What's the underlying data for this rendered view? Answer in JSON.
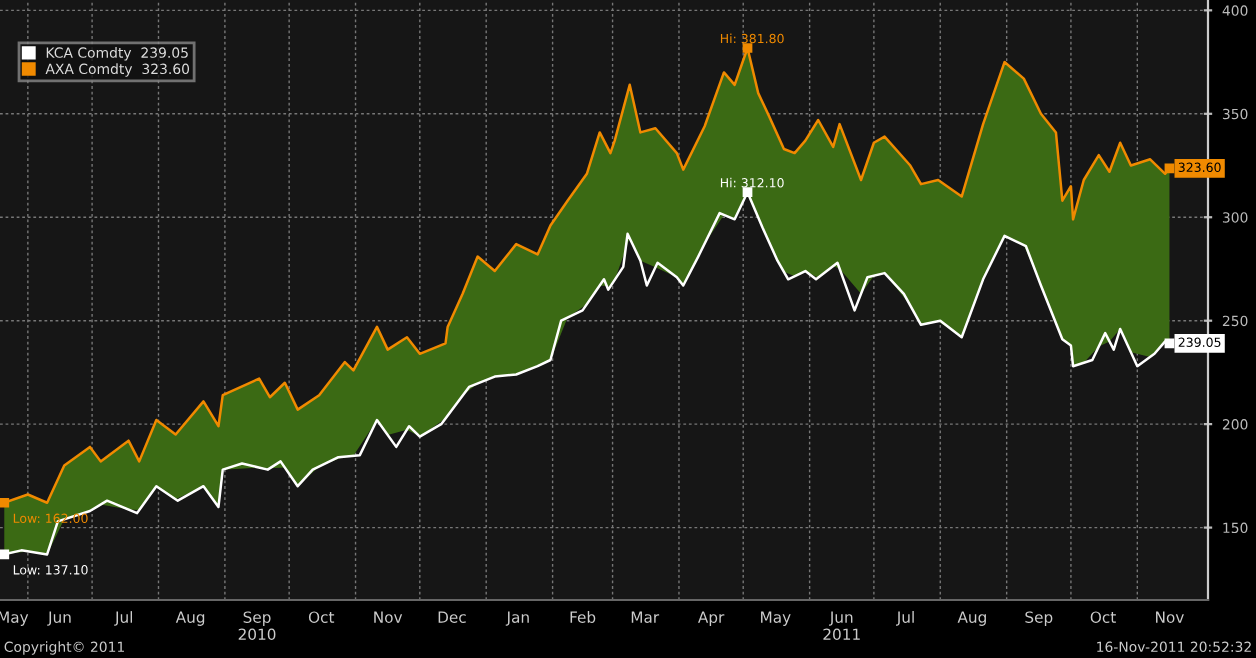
{
  "chart_data": {
    "type": "line",
    "xlim": [
      "2010-05-19",
      "2011-12-04"
    ],
    "ylim": [
      115,
      405
    ],
    "yticks": [
      150,
      200,
      250,
      300,
      350,
      400
    ],
    "xticks": [
      {
        "value": "2010-05-25",
        "label": "May"
      },
      {
        "value": "2010-06-01",
        "label": null
      },
      {
        "value": "2010-06-16",
        "label": "Jun"
      },
      {
        "value": "2010-07-01",
        "label": null
      },
      {
        "value": "2010-07-16",
        "label": "Jul"
      },
      {
        "value": "2010-08-01",
        "label": null
      },
      {
        "value": "2010-08-16",
        "label": "Aug"
      },
      {
        "value": "2010-09-01",
        "label": null
      },
      {
        "value": "2010-09-16",
        "label": "Sep\n2010"
      },
      {
        "value": "2010-10-01",
        "label": null
      },
      {
        "value": "2010-10-16",
        "label": "Oct"
      },
      {
        "value": "2010-11-01",
        "label": null
      },
      {
        "value": "2010-11-16",
        "label": "Nov"
      },
      {
        "value": "2010-12-01",
        "label": null
      },
      {
        "value": "2010-12-16",
        "label": "Dec"
      },
      {
        "value": "2011-01-01",
        "label": null
      },
      {
        "value": "2011-01-16",
        "label": "Jan"
      },
      {
        "value": "2011-02-01",
        "label": null
      },
      {
        "value": "2011-02-15",
        "label": "Feb"
      },
      {
        "value": "2011-03-01",
        "label": null
      },
      {
        "value": "2011-03-16",
        "label": "Mar"
      },
      {
        "value": "2011-04-01",
        "label": null
      },
      {
        "value": "2011-04-16",
        "label": "Apr"
      },
      {
        "value": "2011-05-01",
        "label": null
      },
      {
        "value": "2011-05-16",
        "label": "May"
      },
      {
        "value": "2011-06-01",
        "label": null
      },
      {
        "value": "2011-06-16",
        "label": "Jun\n2011"
      },
      {
        "value": "2011-07-01",
        "label": null
      },
      {
        "value": "2011-07-16",
        "label": "Jul"
      },
      {
        "value": "2011-08-01",
        "label": null
      },
      {
        "value": "2011-08-16",
        "label": "Aug"
      },
      {
        "value": "2011-09-01",
        "label": null
      },
      {
        "value": "2011-09-16",
        "label": "Sep"
      },
      {
        "value": "2011-10-01",
        "label": null
      },
      {
        "value": "2011-10-16",
        "label": "Oct"
      },
      {
        "value": "2011-11-01",
        "label": null
      },
      {
        "value": "2011-11-16",
        "label": "Nov"
      }
    ],
    "grid": true,
    "legend": "top left",
    "colors": [
      "#3b6a14"
    ],
    "series": [
      {
        "name": "KCA Comdty  239.05",
        "color": "#ffffff",
        "x": [
          "2010-05-21",
          "2010-05-29",
          "2010-06-10",
          "2010-06-15",
          "2010-06-30",
          "2010-07-08",
          "2010-07-22",
          "2010-07-31",
          "2010-08-10",
          "2010-08-22",
          "2010-08-29",
          "2010-08-31",
          "2010-09-09",
          "2010-09-21",
          "2010-09-27",
          "2010-10-05",
          "2010-10-12",
          "2010-10-24",
          "2010-11-03",
          "2010-11-11",
          "2010-11-20",
          "2010-11-26",
          "2010-12-01",
          "2010-12-11",
          "2010-12-24",
          "2011-01-05",
          "2011-01-15",
          "2011-01-25",
          "2011-01-31",
          "2011-02-05",
          "2011-02-15",
          "2011-02-25",
          "2011-02-27",
          "2011-03-06",
          "2011-03-08",
          "2011-03-14",
          "2011-03-17",
          "2011-03-22",
          "2011-03-31",
          "2011-04-03",
          "2011-04-10",
          "2011-04-20",
          "2011-04-27",
          "2011-05-03",
          "2011-05-10",
          "2011-05-17",
          "2011-05-22",
          "2011-05-30",
          "2011-06-04",
          "2011-06-14",
          "2011-06-22",
          "2011-06-28",
          "2011-07-06",
          "2011-07-15",
          "2011-07-23",
          "2011-08-01",
          "2011-08-11",
          "2011-08-21",
          "2011-08-31",
          "2011-09-10",
          "2011-09-17",
          "2011-09-27",
          "2011-10-01",
          "2011-10-02",
          "2011-10-11",
          "2011-10-17",
          "2011-10-21",
          "2011-10-24",
          "2011-11-01",
          "2011-11-09",
          "2011-11-14",
          "2011-11-16"
        ],
        "values": [
          137.1,
          139,
          137,
          153,
          158,
          163,
          157,
          170,
          163,
          170,
          160,
          178,
          181,
          178,
          182,
          170,
          178,
          184,
          185,
          202,
          189,
          199,
          194,
          200,
          218,
          223,
          224,
          228,
          231,
          250,
          255,
          270,
          265,
          276,
          292,
          279,
          267,
          278,
          271,
          267,
          281,
          302,
          299,
          312.1,
          295,
          279,
          270,
          274,
          270,
          278,
          255,
          271,
          273,
          263,
          248,
          250,
          242,
          270,
          291,
          286,
          267,
          241,
          238,
          228,
          231,
          244,
          236,
          246,
          228,
          234,
          240,
          239.05
        ]
      },
      {
        "name": "AXA Comdty  323.60",
        "color": "#f08a00",
        "type": "area",
        "x": [
          "2010-05-21",
          "2010-06-01",
          "2010-06-10",
          "2010-06-18",
          "2010-06-30",
          "2010-07-05",
          "2010-07-18",
          "2010-07-23",
          "2010-07-31",
          "2010-08-09",
          "2010-08-22",
          "2010-08-29",
          "2010-08-31",
          "2010-09-17",
          "2010-09-22",
          "2010-09-29",
          "2010-10-05",
          "2010-10-15",
          "2010-10-27",
          "2010-10-31",
          "2010-11-11",
          "2010-11-16",
          "2010-11-25",
          "2010-12-01",
          "2010-12-13",
          "2010-12-14",
          "2010-12-21",
          "2010-12-28",
          "2011-01-05",
          "2011-01-15",
          "2011-01-25",
          "2011-01-31",
          "2011-02-08",
          "2011-02-17",
          "2011-02-23",
          "2011-02-28",
          "2011-03-02",
          "2011-03-09",
          "2011-03-14",
          "2011-03-21",
          "2011-03-31",
          "2011-04-03",
          "2011-04-13",
          "2011-04-22",
          "2011-04-27",
          "2011-05-03",
          "2011-05-08",
          "2011-05-13",
          "2011-05-20",
          "2011-05-25",
          "2011-05-30",
          "2011-06-05",
          "2011-06-12",
          "2011-06-15",
          "2011-06-25",
          "2011-07-01",
          "2011-07-06",
          "2011-07-18",
          "2011-07-23",
          "2011-07-31",
          "2011-08-11",
          "2011-08-21",
          "2011-08-31",
          "2011-09-09",
          "2011-09-17",
          "2011-09-24",
          "2011-09-27",
          "2011-10-01",
          "2011-10-02",
          "2011-10-07",
          "2011-10-14",
          "2011-10-19",
          "2011-10-24",
          "2011-10-29",
          "2011-11-07",
          "2011-11-14",
          "2011-11-16"
        ],
        "values": [
          162.0,
          166,
          162,
          180,
          189,
          182,
          192,
          182,
          202,
          195,
          211,
          199,
          214,
          222,
          213,
          220,
          207,
          214,
          230,
          226,
          247,
          236,
          242,
          234,
          239,
          247,
          263,
          281,
          274,
          287,
          282,
          296,
          308,
          321,
          341,
          331,
          337,
          364,
          341,
          343,
          331,
          323,
          344,
          370,
          364,
          381.8,
          360,
          349,
          333,
          331,
          337,
          347,
          334,
          345,
          318,
          336,
          339,
          325,
          316,
          318,
          310,
          345,
          375,
          367,
          350,
          341,
          308,
          315,
          299,
          318,
          330,
          322,
          336,
          325,
          328,
          321,
          323.6
        ]
      }
    ],
    "annotations": [
      {
        "text": "Hi: 381.80",
        "x": "2011-05-03",
        "y": 381.8
      },
      {
        "text": "Hi: 312.10",
        "x": "2011-05-03",
        "y": 312.1
      },
      {
        "text": "Low: 162.00",
        "x": "2010-05-21",
        "y": 162.0
      },
      {
        "text": "Low: 137.10",
        "x": "2010-05-21",
        "y": 137.1
      },
      {
        "text": "323.60",
        "x": "2011-11-16",
        "y": 323.6
      },
      {
        "text": "239.05",
        "x": "2011-11-16",
        "y": 239.05
      },
      "Copyright© 2011",
      "16-Nov-2011 20:52:32"
    ]
  }
}
